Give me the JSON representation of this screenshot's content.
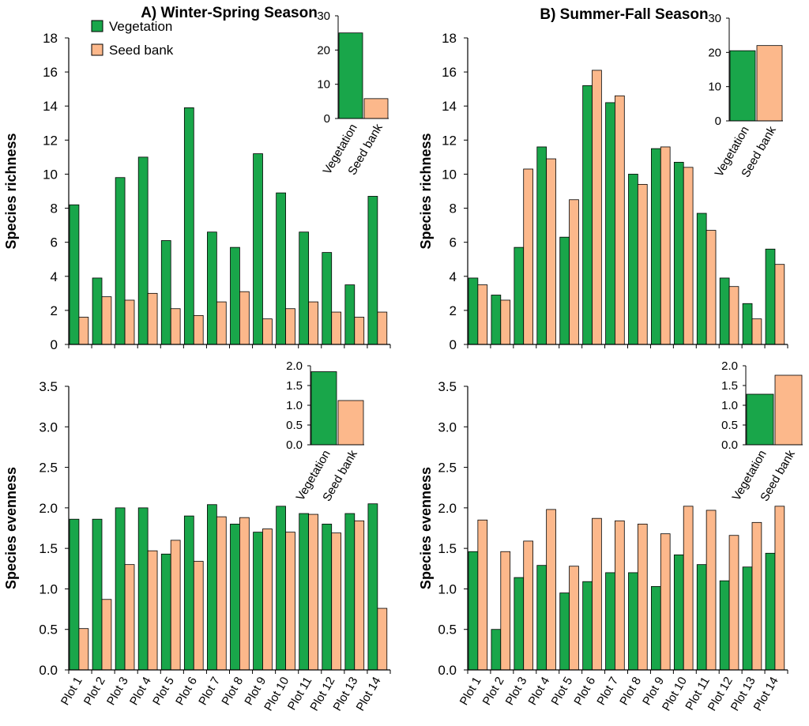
{
  "colors": {
    "vegetation": "#19a64a",
    "seed_bank": "#fcb88b"
  },
  "legend": {
    "vegetation": "Vegetation",
    "seed_bank": "Seed bank"
  },
  "titles": {
    "a": "A) Winter-Spring Season",
    "b": "B) Summer-Fall Season"
  },
  "chart_data": [
    {
      "type": "bar",
      "id": "a_richness",
      "title": "A) Winter-Spring Season",
      "ylabel": "Species richness",
      "ylim": [
        0,
        18
      ],
      "yticks": [
        0,
        2,
        4,
        6,
        8,
        10,
        12,
        14,
        16,
        18
      ],
      "categories": [
        "Plot 1",
        "Plot 2",
        "Plot 3",
        "Plot 4",
        "Plot 5",
        "Plot 6",
        "Plot 7",
        "Plot 8",
        "Plot 9",
        "Plot 10",
        "Plot 11",
        "Plot 12",
        "Plot 13",
        "Plot 14"
      ],
      "series": [
        {
          "name": "Vegetation",
          "values": [
            8.2,
            3.9,
            9.8,
            11.0,
            6.1,
            13.9,
            6.6,
            5.7,
            11.2,
            8.9,
            6.6,
            5.4,
            3.5,
            8.7
          ]
        },
        {
          "name": "Seed bank",
          "values": [
            1.6,
            2.8,
            2.6,
            3.0,
            2.1,
            1.7,
            2.5,
            3.1,
            1.5,
            2.1,
            2.5,
            1.9,
            1.6,
            1.9
          ]
        }
      ],
      "inset": {
        "categories": [
          "Vegetation",
          "Seed bank"
        ],
        "values": [
          25,
          5.8
        ],
        "ylim": [
          0,
          30
        ],
        "yticks": [
          0,
          10,
          20,
          30
        ]
      }
    },
    {
      "type": "bar",
      "id": "b_richness",
      "title": "B) Summer-Fall Season",
      "ylabel": "Species richness",
      "ylim": [
        0,
        18
      ],
      "yticks": [
        0,
        2,
        4,
        6,
        8,
        10,
        12,
        14,
        16,
        18
      ],
      "categories": [
        "Plot 1",
        "Plot 2",
        "Plot 3",
        "Plot 4",
        "Plot 5",
        "Plot 6",
        "Plot 7",
        "Plot 8",
        "Plot 9",
        "Plot 10",
        "Plot 11",
        "Plot 12",
        "Plot 13",
        "Plot 14"
      ],
      "series": [
        {
          "name": "Vegetation",
          "values": [
            3.9,
            2.9,
            5.7,
            11.6,
            6.3,
            15.2,
            14.2,
            10.0,
            11.5,
            10.7,
            7.7,
            3.9,
            2.4,
            5.6
          ]
        },
        {
          "name": "Seed bank",
          "values": [
            3.5,
            2.6,
            10.3,
            10.9,
            8.5,
            16.1,
            14.6,
            9.4,
            11.6,
            10.4,
            6.7,
            3.4,
            1.5,
            4.7
          ]
        }
      ],
      "inset": {
        "categories": [
          "Vegetation",
          "Seed bank"
        ],
        "values": [
          20.5,
          22
        ],
        "ylim": [
          0,
          30
        ],
        "yticks": [
          0,
          10,
          20,
          30
        ]
      }
    },
    {
      "type": "bar",
      "id": "a_evenness",
      "ylabel": "Species evenness",
      "ylim": [
        0,
        3.5
      ],
      "yticks": [
        0,
        0.5,
        1.0,
        1.5,
        2.0,
        2.5,
        3.0,
        3.5
      ],
      "categories": [
        "Plot 1",
        "Plot 2",
        "Plot 3",
        "Plot 4",
        "Plot 5",
        "Plot 6",
        "Plot 7",
        "Plot 8",
        "Plot 9",
        "Plot 10",
        "Plot 11",
        "Plot 12",
        "Plot 13",
        "Plot 14"
      ],
      "series": [
        {
          "name": "Vegetation",
          "values": [
            1.86,
            1.86,
            2.0,
            2.0,
            1.43,
            1.9,
            2.04,
            1.8,
            1.7,
            2.02,
            1.93,
            1.8,
            1.93,
            2.05
          ]
        },
        {
          "name": "Seed bank",
          "values": [
            0.51,
            0.87,
            1.3,
            1.47,
            1.6,
            1.34,
            1.89,
            1.88,
            1.74,
            1.7,
            1.92,
            1.69,
            1.84,
            0.76
          ]
        }
      ],
      "inset": {
        "categories": [
          "Vegetation",
          "Seed bank"
        ],
        "values": [
          1.85,
          1.12
        ],
        "ylim": [
          0,
          2.0
        ],
        "yticks": [
          0,
          0.5,
          1.0,
          1.5,
          2.0
        ]
      }
    },
    {
      "type": "bar",
      "id": "b_evenness",
      "ylabel": "Species evenness",
      "ylim": [
        0,
        3.5
      ],
      "yticks": [
        0,
        0.5,
        1.0,
        1.5,
        2.0,
        2.5,
        3.0,
        3.5
      ],
      "categories": [
        "Plot 1",
        "Plot 2",
        "Plot 3",
        "Plot 4",
        "Plot 5",
        "Plot 6",
        "Plot 7",
        "Plot 8",
        "Plot 9",
        "Plot 10",
        "Plot 11",
        "Plot 12",
        "Plot 13",
        "Plot 14"
      ],
      "series": [
        {
          "name": "Vegetation",
          "values": [
            1.46,
            0.5,
            1.14,
            1.29,
            0.95,
            1.09,
            1.2,
            1.2,
            1.03,
            1.42,
            1.3,
            1.1,
            1.27,
            1.44
          ]
        },
        {
          "name": "Seed bank",
          "values": [
            1.85,
            1.46,
            1.59,
            1.98,
            1.28,
            1.87,
            1.84,
            1.8,
            1.68,
            2.02,
            1.97,
            1.66,
            1.82,
            2.02
          ]
        }
      ],
      "inset": {
        "categories": [
          "Vegetation",
          "Seed bank"
        ],
        "values": [
          1.28,
          1.76
        ],
        "ylim": [
          0,
          2.0
        ],
        "yticks": [
          0,
          0.5,
          1.0,
          1.5,
          2.0
        ]
      }
    }
  ]
}
